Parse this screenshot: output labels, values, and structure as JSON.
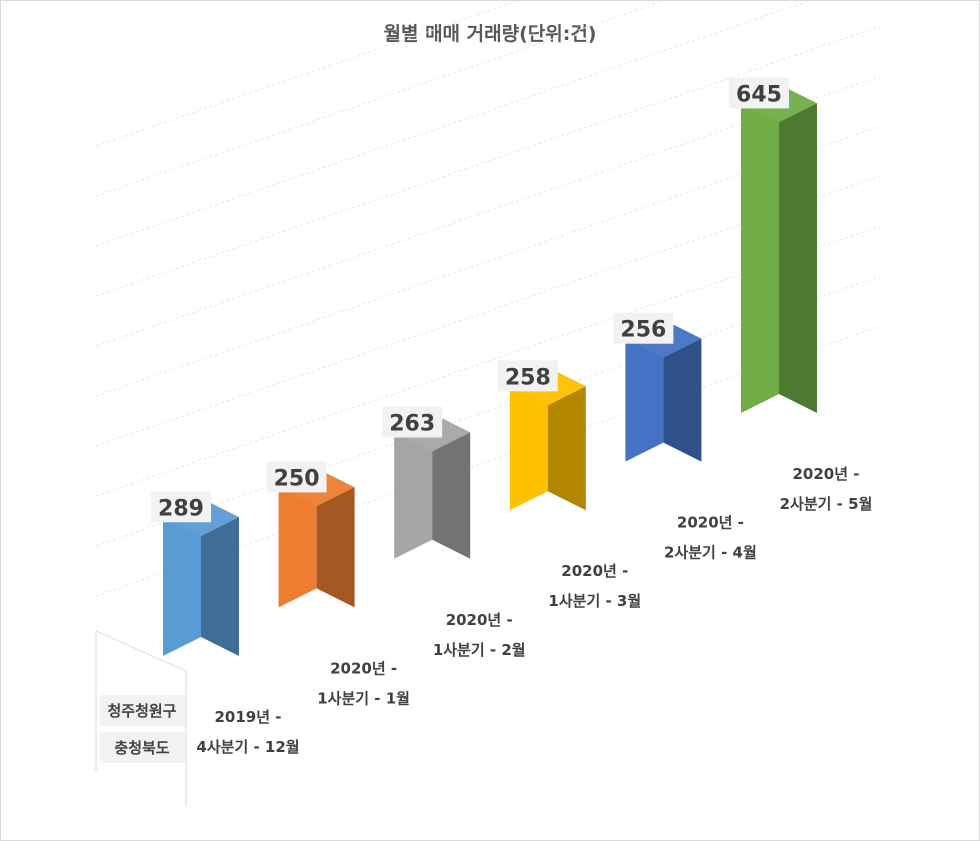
{
  "chart_data": {
    "type": "bar",
    "title": "월별 매매 거래량(단위:건)",
    "categories": [
      [
        "2019년 -",
        "4사분기 - 12월"
      ],
      [
        "2020년 -",
        "1사분기 - 1월"
      ],
      [
        "2020년 -",
        "1사분기 - 2월"
      ],
      [
        "2020년 -",
        "1사분기 - 3월"
      ],
      [
        "2020년 -",
        "2사분기 - 4월"
      ],
      [
        "2020년 -",
        "2사분기 - 5월"
      ]
    ],
    "group_labels": [
      "청주청원구",
      "충청북도"
    ],
    "values": [
      289,
      250,
      263,
      258,
      256,
      645
    ],
    "bar_colors": [
      "#5b9bd5",
      "#ed7d31",
      "#a5a5a5",
      "#ffc000",
      "#4472c4",
      "#70ad47"
    ],
    "data_labels": true,
    "grid": true,
    "legend": "none"
  }
}
